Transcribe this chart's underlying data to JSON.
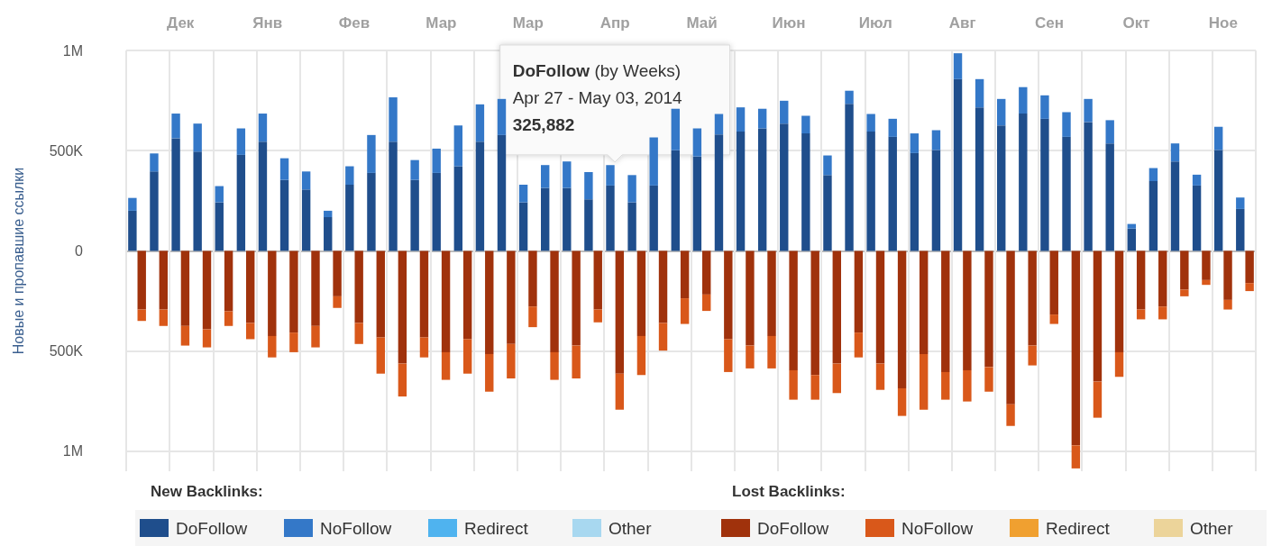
{
  "chart_data": {
    "type": "bar",
    "stacked": true,
    "ylabel": "Новые и пропавшие ссылки",
    "categories": [
      null,
      null,
      "Дек",
      null,
      null,
      null,
      "Янв",
      null,
      null,
      null,
      "Фев",
      null,
      null,
      null,
      "Мар",
      null,
      null,
      null,
      "Мар",
      null,
      null,
      null,
      "Апр",
      null,
      null,
      null,
      "Май",
      null,
      null,
      null,
      "Июн",
      null,
      null,
      null,
      "Июл",
      null,
      null,
      null,
      "Авг",
      null,
      null,
      null,
      "Сен",
      null,
      null,
      null,
      "Окт",
      null,
      null,
      null,
      "Ное",
      null
    ],
    "series": [
      {
        "name": "DoFollow",
        "color": "#1f4e8c",
        "values": [
          200000,
          396000,
          562000,
          495000,
          242000,
          479000,
          545000,
          354000,
          306000,
          168000,
          330000,
          389000,
          545000,
          354000,
          389000,
          422000,
          545000,
          578000,
          242000,
          314000,
          314000,
          257000,
          325882,
          242000,
          326000,
          502000,
          471000,
          581000,
          595000,
          611000,
          635000,
          586000,
          378000,
          734000,
          595000,
          569000,
          488000,
          503000,
          857000,
          716000,
          626000,
          685000,
          659000,
          569000,
          643000,
          536000,
          111000,
          348000,
          446000,
          326000,
          503000,
          209000
        ]
      },
      {
        "name": "NoFollow",
        "color": "#3478c8",
        "values": [
          64000,
          90000,
          123000,
          140000,
          81000,
          132000,
          140000,
          108000,
          90000,
          32000,
          92000,
          189000,
          221000,
          99000,
          121000,
          204000,
          186000,
          180000,
          88000,
          114000,
          132000,
          136000,
          102000,
          136000,
          240000,
          207000,
          140000,
          102000,
          121000,
          98000,
          114000,
          88000,
          98000,
          65000,
          88000,
          90000,
          98000,
          99000,
          129000,
          141000,
          132000,
          132000,
          117000,
          123000,
          115000,
          116000,
          23000,
          65000,
          90000,
          54000,
          116000,
          57000
        ]
      },
      {
        "name": "Redirect",
        "color": "#4fb3ef",
        "values": [
          null,
          null,
          null,
          null,
          null,
          null,
          null,
          null,
          null,
          null,
          null,
          null,
          null,
          null,
          null,
          null,
          null,
          null,
          null,
          null,
          null,
          null,
          null,
          null,
          null,
          null,
          null,
          null,
          null,
          null,
          null,
          null,
          null,
          null,
          null,
          null,
          null,
          null,
          null,
          null,
          null,
          null,
          null,
          null,
          null,
          null,
          null,
          null,
          null,
          null,
          null,
          null
        ]
      },
      {
        "name": "Other",
        "color": "#a8d8f0",
        "values": [
          null,
          null,
          null,
          null,
          null,
          null,
          null,
          null,
          null,
          null,
          null,
          null,
          null,
          null,
          null,
          null,
          null,
          null,
          null,
          null,
          null,
          null,
          null,
          null,
          null,
          null,
          null,
          null,
          null,
          null,
          null,
          null,
          null,
          null,
          null,
          null,
          null,
          null,
          null,
          null,
          null,
          null,
          null,
          null,
          null,
          null,
          null,
          null,
          null,
          null,
          null,
          null
        ]
      },
      {
        "name": "DoFollow",
        "color": "#a0320c",
        "values": [
          -293000,
          -293000,
          -375000,
          -392000,
          -302000,
          -360000,
          -425000,
          -408000,
          -375000,
          -227000,
          -360000,
          -432000,
          -563000,
          -432000,
          -506000,
          -441000,
          -515000,
          -465000,
          -278000,
          -506000,
          -473000,
          -293000,
          -613000,
          -425000,
          -360000,
          -237000,
          -218000,
          -441000,
          -473000,
          -425000,
          -596000,
          -620000,
          -563000,
          -408000,
          -563000,
          -686000,
          -515000,
          -605000,
          -596000,
          -580000,
          -766000,
          -473000,
          -318000,
          -971000,
          -653000,
          -506000,
          -293000,
          -278000,
          -194000,
          -146000,
          -245000,
          -161000
        ]
      },
      {
        "name": "NoFollow",
        "color": "#d9581a",
        "values": [
          -57000,
          -82000,
          -98000,
          -90000,
          -73000,
          -81000,
          -107000,
          -98000,
          -107000,
          -58000,
          -105000,
          -181000,
          -164000,
          -100000,
          -138000,
          -172000,
          -188000,
          -172000,
          -103000,
          -138000,
          -164000,
          -64000,
          -180000,
          -195000,
          -138000,
          -128000,
          -82000,
          -164000,
          -114000,
          -162000,
          -147000,
          -123000,
          -147000,
          -124000,
          -131000,
          -138000,
          -278000,
          -138000,
          -156000,
          -123000,
          -108000,
          -99000,
          -47000,
          -115000,
          -180000,
          -123000,
          -49000,
          -64000,
          -33000,
          -24000,
          -48000,
          -40000
        ]
      },
      {
        "name": "Redirect",
        "color": "#f0a030",
        "values": [
          null,
          null,
          null,
          null,
          null,
          null,
          null,
          null,
          null,
          null,
          null,
          null,
          null,
          null,
          null,
          null,
          null,
          null,
          null,
          null,
          null,
          null,
          null,
          null,
          null,
          null,
          null,
          null,
          null,
          null,
          null,
          null,
          null,
          null,
          null,
          null,
          null,
          null,
          null,
          null,
          null,
          null,
          null,
          null,
          null,
          null,
          null,
          null,
          null,
          null,
          null,
          null
        ]
      },
      {
        "name": "Other",
        "color": "#ecd49a",
        "values": [
          null,
          null,
          null,
          null,
          null,
          null,
          null,
          null,
          null,
          null,
          null,
          null,
          null,
          null,
          null,
          null,
          null,
          null,
          null,
          null,
          null,
          null,
          null,
          null,
          null,
          null,
          null,
          null,
          null,
          null,
          null,
          null,
          null,
          null,
          null,
          null,
          null,
          null,
          null,
          null,
          null,
          null,
          null,
          null,
          null,
          null,
          null,
          null,
          null,
          null,
          null,
          null
        ]
      }
    ],
    "ylim": [
      -1100000,
      1000000
    ],
    "yticks": [
      {
        "value": -1000000,
        "label": "1M"
      },
      {
        "value": -500000,
        "label": "500K"
      },
      0,
      {
        "value": 500000,
        "label": "500K"
      },
      {
        "value": 1000000,
        "label": "1M"
      }
    ],
    "grid": true,
    "legend": "bottom",
    "annotations": [
      {
        "text": "DoFollow (by Weeks)\nApr 27 - May 03, 2014\n325,882",
        "x": "Апр",
        "y": 325882
      },
      "New Backlinks:",
      "Lost Backlinks:"
    ]
  }
}
